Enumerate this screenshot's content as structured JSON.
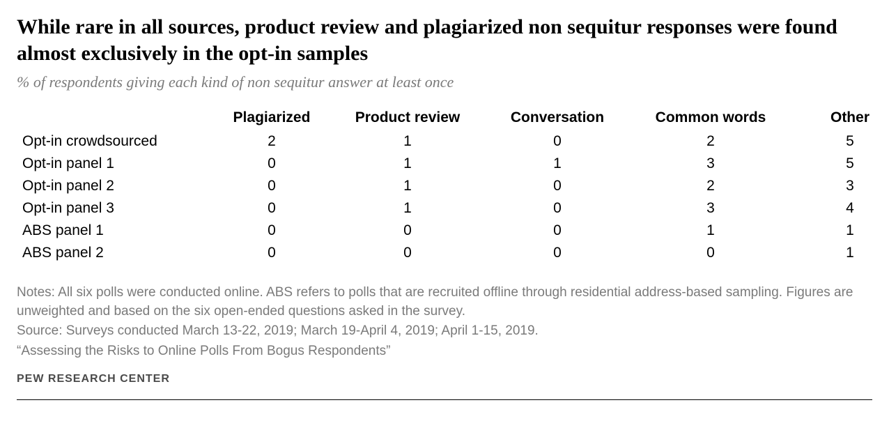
{
  "title": "While rare in all sources, product review and plagiarized non sequitur responses were found almost exclusively in the opt-in samples",
  "subtitle": "% of respondents giving each kind of non sequitur answer at least once",
  "columns": {
    "c0": "Plagiarized",
    "c1": "Product review",
    "c2": "Conversation",
    "c3": "Common words",
    "c4": "Other"
  },
  "rows": [
    {
      "label": "Opt-in crowdsourced",
      "v": [
        "2",
        "1",
        "0",
        "2",
        "5"
      ]
    },
    {
      "label": "Opt-in panel 1",
      "v": [
        "0",
        "1",
        "1",
        "3",
        "5"
      ]
    },
    {
      "label": "Opt-in panel 2",
      "v": [
        "0",
        "1",
        "0",
        "2",
        "3"
      ]
    },
    {
      "label": "Opt-in panel 3",
      "v": [
        "0",
        "1",
        "0",
        "3",
        "4"
      ]
    },
    {
      "label": "ABS panel 1",
      "v": [
        "0",
        "0",
        "0",
        "1",
        "1"
      ]
    },
    {
      "label": "ABS panel 2",
      "v": [
        "0",
        "0",
        "0",
        "0",
        "1"
      ]
    }
  ],
  "notes_line1": "Notes: All six polls were conducted online. ABS refers to polls that are recruited offline through residential address-based sampling. Figures are unweighted and based on the six open-ended questions asked in the survey.",
  "notes_line2": "Source: Surveys conducted March 13-22, 2019; March 19-April 4, 2019; April 1-15, 2019.",
  "notes_line3": "“Assessing the Risks to Online Polls From Bogus Respondents”",
  "org": "PEW RESEARCH CENTER",
  "style": {
    "title_fontsize": 30,
    "subtitle_fontsize": 22,
    "table_fontsize": 21,
    "notes_fontsize": 19,
    "org_fontsize": 16,
    "text_color": "#000000",
    "muted_color": "#7a7a7a",
    "rule_color": "#000000",
    "background": "#ffffff"
  }
}
